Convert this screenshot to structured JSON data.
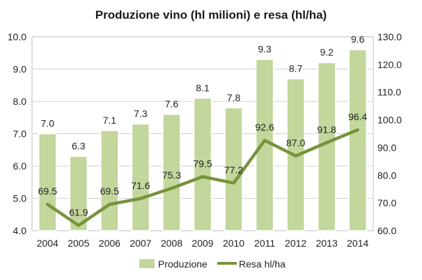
{
  "chart_data": {
    "type": "bar+line",
    "title": "Produzione vino (hl milioni) e resa (hl/ha)",
    "categories": [
      "2004",
      "2005",
      "2006",
      "2007",
      "2008",
      "2009",
      "2010",
      "2011",
      "2012",
      "2013",
      "2014"
    ],
    "series": [
      {
        "name": "Produzione",
        "type": "bar",
        "axis": "left",
        "values": [
          7.0,
          6.3,
          7.1,
          7.3,
          7.6,
          8.1,
          7.8,
          9.3,
          8.7,
          9.2,
          9.6
        ],
        "labels": [
          "7.0",
          "6.3",
          "7.1",
          "7.3",
          "7.6",
          "8.1",
          "7.8",
          "9.3",
          "8.7",
          "9.2",
          "9.6"
        ],
        "color": "#c3d69b"
      },
      {
        "name": "Resa hl/ha",
        "type": "line",
        "axis": "right",
        "values": [
          69.5,
          61.9,
          69.5,
          71.6,
          75.3,
          79.5,
          77.2,
          92.6,
          87.0,
          91.8,
          96.4
        ],
        "labels": [
          "69.5",
          "61.9",
          "69.5",
          "71.6",
          "75.3",
          "79.5",
          "77.2",
          "92.6",
          "87.0",
          "91.8",
          "96.4"
        ],
        "color": "#77933c"
      }
    ],
    "left_axis": {
      "min": 4.0,
      "max": 10.0,
      "ticks": [
        "4.0",
        "5.0",
        "6.0",
        "7.0",
        "8.0",
        "9.0",
        "10.0"
      ]
    },
    "right_axis": {
      "min": 60.0,
      "max": 130.0,
      "ticks": [
        "60.0",
        "70.0",
        "80.0",
        "90.0",
        "100.0",
        "110.0",
        "120.0",
        "130.0"
      ]
    },
    "grid": true,
    "legend_position": "bottom"
  }
}
